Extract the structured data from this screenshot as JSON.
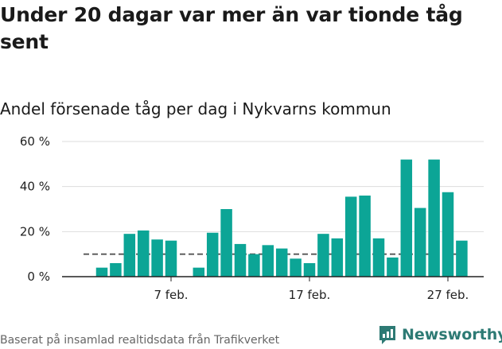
{
  "headline": "Under 20 dagar var mer än var tionde tåg sent",
  "subtitle": "Andel försenade tåg per dag i Nykvarns kommun",
  "source": "Baserat på insamlad realtidsdata från Trafikverket",
  "logo_text": "Newsworthy",
  "colors": {
    "bar": "#0ca596",
    "reference": "#555555",
    "axis": "#222222",
    "grid": "#dddddd",
    "logo": "#2d7a74"
  },
  "chart_data": {
    "type": "bar",
    "title": "Andel försenade tåg per dag i Nykvarns kommun",
    "xlabel": "",
    "ylabel": "",
    "ylim": [
      0,
      60
    ],
    "y_ticks": [
      0,
      20,
      40,
      60
    ],
    "y_tick_labels": [
      "0 %",
      "20 %",
      "40 %",
      "60 %"
    ],
    "x_ticks": [
      {
        "day": 7,
        "label": "7 feb."
      },
      {
        "day": 17,
        "label": "17 feb."
      },
      {
        "day": 27,
        "label": "27 feb."
      }
    ],
    "days": [
      2,
      3,
      4,
      5,
      6,
      7,
      9,
      10,
      11,
      12,
      13,
      14,
      15,
      16,
      17,
      18,
      19,
      20,
      21,
      22,
      23,
      24,
      25,
      26,
      27,
      28
    ],
    "values": [
      4,
      6,
      19,
      20.5,
      16.5,
      16,
      4,
      19.5,
      30,
      14.5,
      10,
      14,
      12.5,
      8,
      6,
      19,
      17,
      35.5,
      36,
      17,
      8.5,
      52,
      30.5,
      52,
      37.5,
      16
    ],
    "reference_line": 10,
    "grid": true
  }
}
